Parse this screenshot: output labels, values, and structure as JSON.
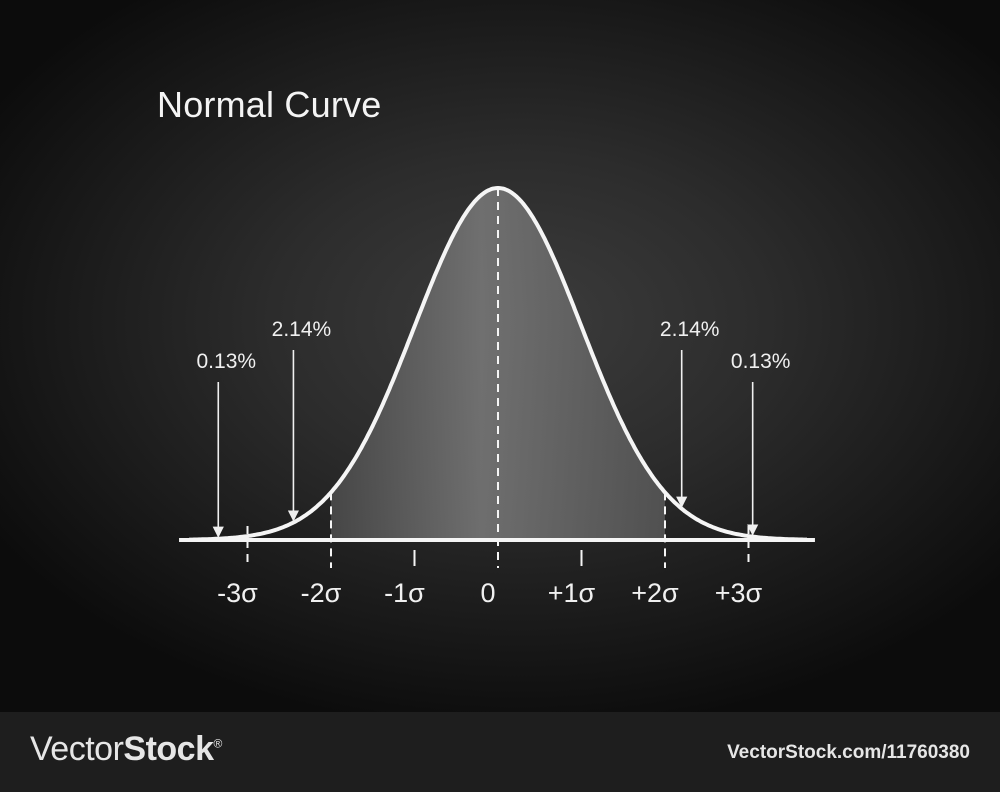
{
  "chart_data": {
    "type": "area",
    "title": "Normal Curve",
    "x_ticks": [
      {
        "value": -3,
        "label": "-3σ"
      },
      {
        "value": -2,
        "label": "-2σ"
      },
      {
        "value": -1,
        "label": "-1σ"
      },
      {
        "value": 0,
        "label": "0"
      },
      {
        "value": 1,
        "label": "+1σ"
      },
      {
        "value": 2,
        "label": "+2σ"
      },
      {
        "value": 3,
        "label": "+3σ"
      }
    ],
    "xlim": [
      -3.7,
      3.7
    ],
    "shaded_range": [
      -2,
      2
    ],
    "dashed_markers": [
      -3,
      -2,
      0,
      2,
      3
    ],
    "annotations": [
      {
        "label": "0.13%",
        "target_x": -3.35
      },
      {
        "label": "2.14%",
        "target_x": -2.45
      },
      {
        "label": "2.14%",
        "target_x": 2.2
      },
      {
        "label": "0.13%",
        "target_x": 3.05
      }
    ],
    "colors": {
      "curve": "#f5f5f5",
      "fill": "#6e6e6e",
      "text": "#f0f0f0"
    }
  },
  "footer": {
    "brand_light": "Vector",
    "brand_bold": "Stock",
    "brand_mark": "®",
    "stock_id": "VectorStock.com/11760380"
  }
}
